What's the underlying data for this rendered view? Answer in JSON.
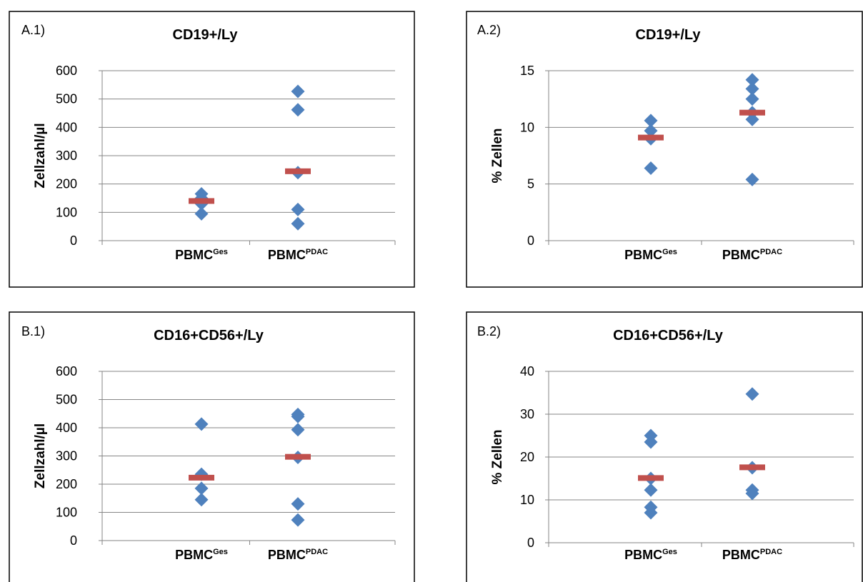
{
  "chart_data": [
    {
      "type": "scatter",
      "panel_label": "A.1)",
      "title": "CD19+/Ly",
      "ylabel": "Zellzahl/µl",
      "categories": [
        {
          "base": "PBMC",
          "sup": "Ges"
        },
        {
          "base": "PBMC",
          "sup": "PDAC"
        }
      ],
      "ylim": [
        0,
        600
      ],
      "yticks": [
        0,
        100,
        200,
        300,
        400,
        500,
        600
      ],
      "grid": true,
      "points": [
        [
          165,
          150,
          130,
          95
        ],
        [
          527,
          462,
          240,
          110,
          60
        ]
      ],
      "medians": [
        140,
        245
      ],
      "colors": {
        "points": "#4f81bd",
        "median": "#c0504d"
      }
    },
    {
      "type": "scatter",
      "panel_label": "A.2)",
      "title": "CD19+/Ly",
      "ylabel": "% Zellen",
      "categories": [
        {
          "base": "PBMC",
          "sup": "Ges"
        },
        {
          "base": "PBMC",
          "sup": "PDAC"
        }
      ],
      "ylim": [
        0,
        15
      ],
      "yticks": [
        0,
        5,
        10,
        15
      ],
      "grid": true,
      "points": [
        [
          10.6,
          9.7,
          9.0,
          6.4
        ],
        [
          14.2,
          13.4,
          12.5,
          11.3,
          10.7,
          5.4
        ]
      ],
      "medians": [
        9.1,
        11.3
      ],
      "colors": {
        "points": "#4f81bd",
        "median": "#c0504d"
      }
    },
    {
      "type": "scatter",
      "panel_label": "B.1)",
      "title": "CD16+CD56+/Ly",
      "ylabel": "Zellzahl/µl",
      "categories": [
        {
          "base": "PBMC",
          "sup": "Ges"
        },
        {
          "base": "PBMC",
          "sup": "PDAC"
        }
      ],
      "ylim": [
        0,
        600
      ],
      "yticks": [
        0,
        100,
        200,
        300,
        400,
        500,
        600
      ],
      "grid": true,
      "points": [
        [
          413,
          235,
          185,
          145
        ],
        [
          447,
          440,
          393,
          295,
          130,
          73
        ]
      ],
      "medians": [
        223,
        297
      ],
      "colors": {
        "points": "#4f81bd",
        "median": "#c0504d"
      }
    },
    {
      "type": "scatter",
      "panel_label": "B.2)",
      "title": "CD16+CD56+/Ly",
      "ylabel": "% Zellen",
      "categories": [
        {
          "base": "PBMC",
          "sup": "Ges"
        },
        {
          "base": "PBMC",
          "sup": "PDAC"
        }
      ],
      "ylim": [
        0,
        40
      ],
      "yticks": [
        0,
        10,
        20,
        30,
        40
      ],
      "grid": true,
      "points": [
        [
          25,
          23.5,
          15,
          12.3,
          8.3,
          7.0
        ],
        [
          34.7,
          17.5,
          12.3,
          11.5
        ]
      ],
      "medians": [
        15.1,
        17.6
      ],
      "colors": {
        "points": "#4f81bd",
        "median": "#c0504d"
      }
    }
  ]
}
